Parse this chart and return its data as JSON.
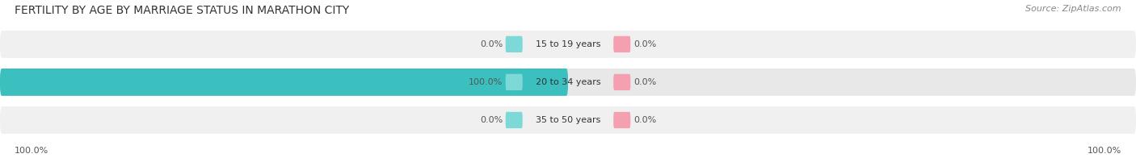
{
  "title": "FERTILITY BY AGE BY MARRIAGE STATUS IN MARATHON CITY",
  "source": "Source: ZipAtlas.com",
  "categories": [
    "15 to 19 years",
    "20 to 34 years",
    "35 to 50 years"
  ],
  "married_values": [
    0.0,
    100.0,
    0.0
  ],
  "unmarried_values": [
    0.0,
    0.0,
    0.0
  ],
  "married_color": "#3bbfbf",
  "unmarried_color": "#f4a0b0",
  "row_light_color": "#f0f0f0",
  "row_dark_color": "#e8e8e8",
  "max_value": 100.0,
  "title_fontsize": 10,
  "source_fontsize": 8,
  "label_fontsize": 8,
  "bar_label_fontsize": 8,
  "legend_fontsize": 8.5,
  "x_left_label": "100.0%",
  "x_right_label": "100.0%",
  "background_color": "#ffffff",
  "chip_married_color": "#7dd8d8",
  "chip_unmarried_color": "#f4a0b0"
}
